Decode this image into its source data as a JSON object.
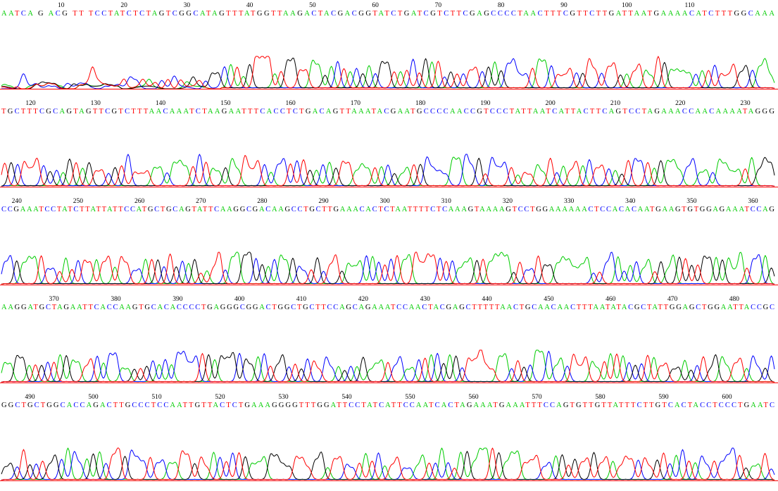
{
  "chart_data": {
    "type": "line",
    "colors": {
      "A": "#00cc00",
      "C": "#0000ff",
      "G": "#000000",
      "T": "#ff0000",
      "baseline": "#ff0000"
    },
    "rows": [
      {
        "start": 1,
        "seq": "AATCA G  ACG  TT   TCCTATCTCTAGTCGGCATAGTTTATGGTTAAGACTACGACGGTATCTGATCGTCTTCGAGCCCCTAACTTTCGTTCTTGATTAATGAAAACATCTTTGGCAAA",
        "ticks": [
          10,
          20,
          30,
          40,
          50,
          60,
          70,
          80,
          90,
          100,
          110
        ]
      },
      {
        "start": 116,
        "seq": "TGCTTTCGCAGTAGTTCGTCTTTAACAAATCTAAGAATTTCACCTCTGACAGTTAAATACGAATGCCCCAACCGTCCCTATTAATCATTACTTCAGTCCTAGAAACCAACAAAATAGGG",
        "ticks": [
          120,
          130,
          140,
          150,
          160,
          170,
          180,
          190,
          200,
          210,
          220,
          230
        ]
      },
      {
        "start": 238,
        "seq": "CCGAAATCCTATCTTATTATTCCATGCTGCAGTATTCAAGGCGACAAGCCTGCTTGAAACACTCTAATTTTCTCAAAGTAAAAGTCCTGGAAAAAACTCCACACAATGAAGTGTGGAGAAATCCAG",
        "ticks": [
          240,
          250,
          260,
          270,
          280,
          290,
          300,
          310,
          320,
          330,
          340,
          350,
          360
        ]
      },
      {
        "start": 362,
        "seq": "AAGGATGCTAGAATTCACCAAGTGCACACCCCTGAGGGCGGACTGGCTGCTTCCAGCAGAAATCCAACTACGAGCTTTTTAACTGCAACAACTTTAATATACGCTATTGGAGCTGGAATTACCGC",
        "ticks": [
          370,
          380,
          390,
          400,
          410,
          420,
          430,
          440,
          450,
          460,
          470,
          480
        ]
      },
      {
        "start": 486,
        "seq": "GGCTGCTGGCACCAGACTTGCCCTCCAATTGTTACTCTGAAAGGGGTTTGGATTCCTATCATTCCAATCACTAGAAATGAAATTTCCAGTGTTGTTATTTCTTGTCACTACCTCCCTGAATC",
        "ticks": [
          490,
          500,
          510,
          520,
          530,
          540,
          550,
          560,
          570,
          580,
          590,
          600
        ]
      }
    ]
  }
}
